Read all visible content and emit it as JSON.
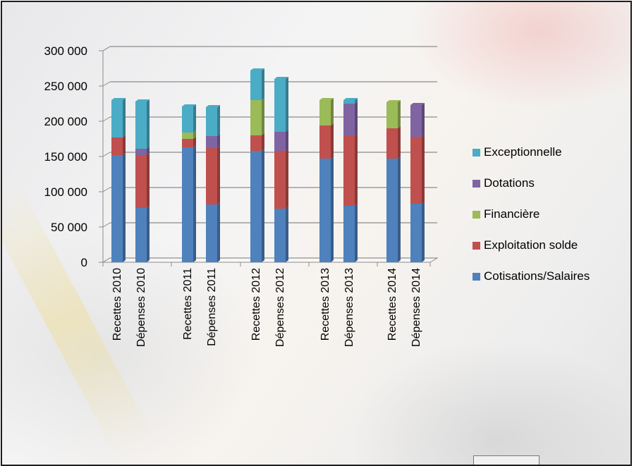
{
  "chart_data": {
    "type": "bar",
    "stacked": true,
    "categories": [
      "Recettes 2010",
      "Dépenses 2010",
      "Recettes 2011",
      "Dépenses 2011",
      "Recettes 2012",
      "Dépenses 2012",
      "Recettes 2013",
      "Dépenses 2013",
      "Recettes 2014",
      "Dépenses 2014"
    ],
    "series": [
      {
        "name": "Cotisations/Salaires",
        "color": "#4f81bd",
        "values": [
          152000,
          77000,
          163000,
          82000,
          158000,
          76000,
          147000,
          80000,
          147000,
          83000
        ]
      },
      {
        "name": "Exploitation solde",
        "color": "#c0504d",
        "values": [
          25000,
          75000,
          12000,
          80000,
          22000,
          82000,
          47000,
          100000,
          43000,
          95000
        ]
      },
      {
        "name": "Financière",
        "color": "#9bbb59",
        "values": [
          0,
          0,
          9000,
          0,
          50000,
          0,
          36000,
          0,
          37000,
          0
        ]
      },
      {
        "name": "Dotations",
        "color": "#8064a2",
        "values": [
          0,
          9000,
          0,
          17000,
          0,
          27000,
          0,
          45000,
          0,
          45000
        ]
      },
      {
        "name": "Exceptionnelle",
        "color": "#4bacc6",
        "values": [
          53000,
          67000,
          37000,
          41000,
          42000,
          75000,
          0,
          5000,
          0,
          0
        ]
      }
    ],
    "yticks": [
      "0",
      "50 000",
      "100 000",
      "150 000",
      "200 000",
      "250 000",
      "300 000"
    ],
    "ylim": [
      0,
      300000
    ],
    "grid": true,
    "legend_position": "right"
  }
}
